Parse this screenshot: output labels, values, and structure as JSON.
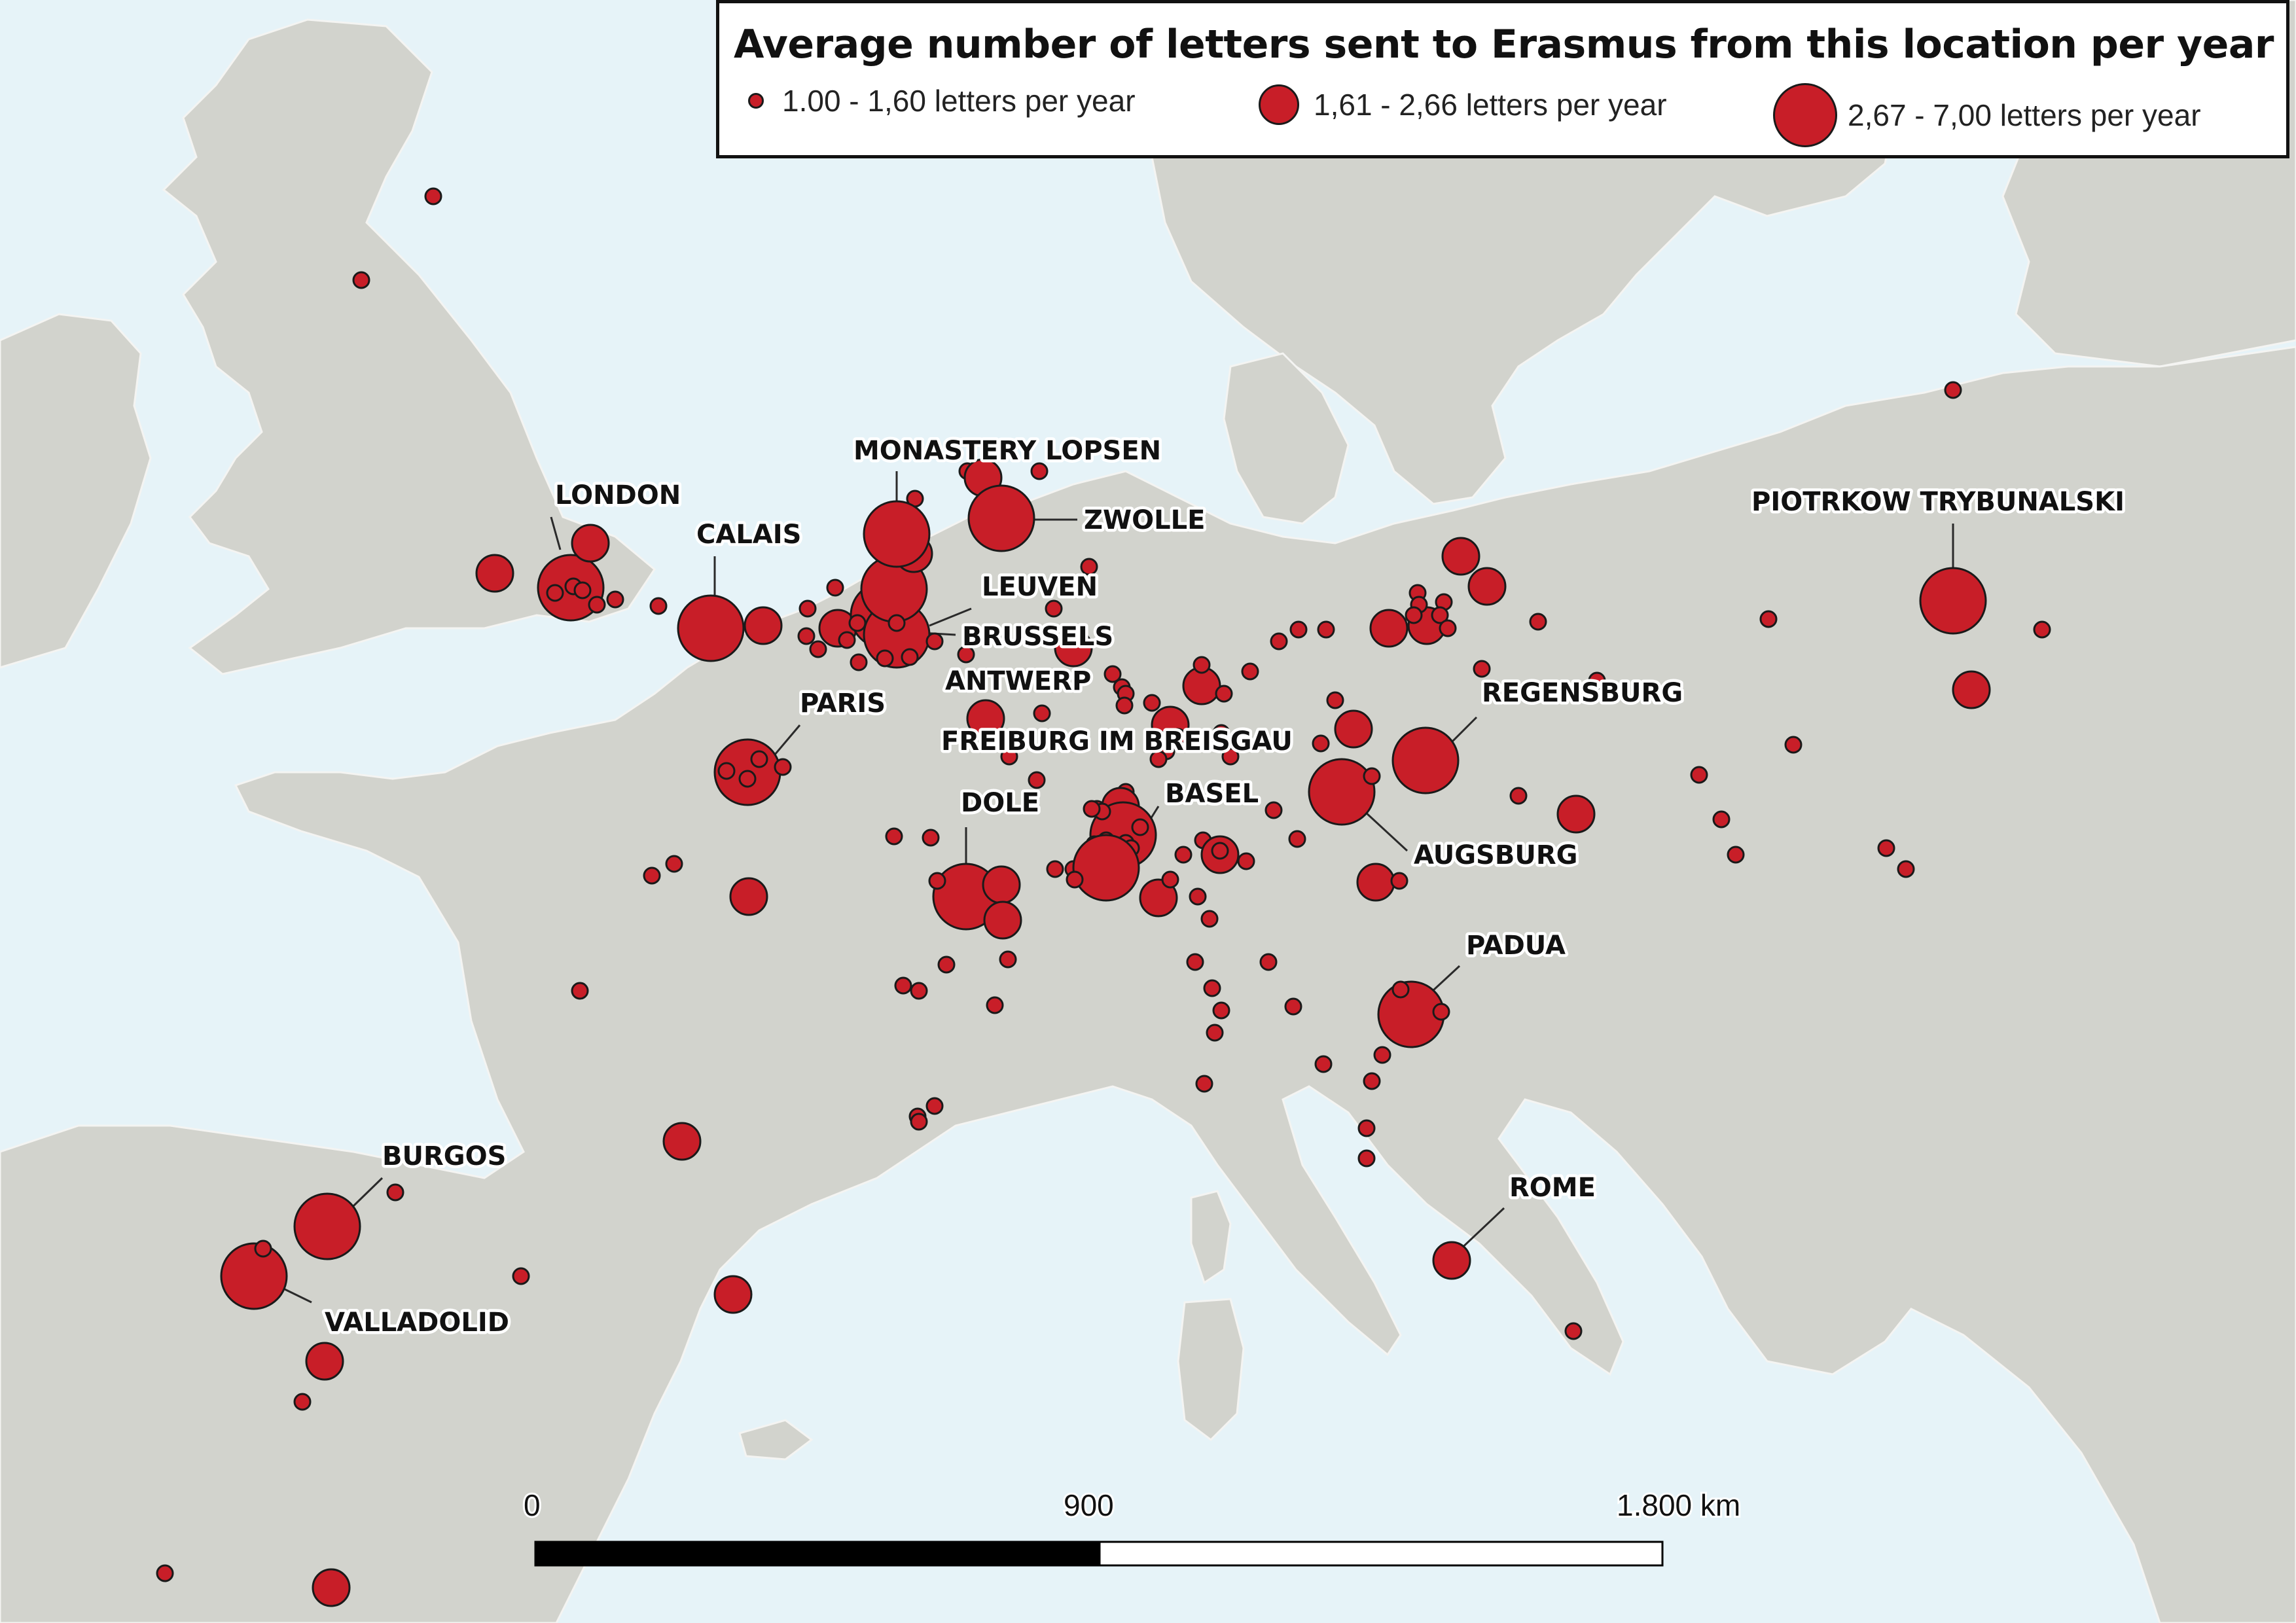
{
  "map": {
    "colors": {
      "land": "#d2d3cd",
      "water": "#e6f3f8",
      "dot": "#c81e28",
      "dot_stroke": "#1a1a1a"
    },
    "labels": [
      {
        "id": "london",
        "text": "LONDON"
      },
      {
        "id": "monastery-lopsen",
        "text": "MONASTERY LOPSEN"
      },
      {
        "id": "zwolle",
        "text": "ZWOLLE"
      },
      {
        "id": "calais",
        "text": "CALAIS"
      },
      {
        "id": "leuven",
        "text": "LEUVEN"
      },
      {
        "id": "brussels",
        "text": "BRUSSELS"
      },
      {
        "id": "antwerp",
        "text": "ANTWERP"
      },
      {
        "id": "paris",
        "text": "PARIS"
      },
      {
        "id": "freiburg",
        "text": "FREIBURG IM BREISGAU"
      },
      {
        "id": "basel",
        "text": "BASEL"
      },
      {
        "id": "dole",
        "text": "DOLE"
      },
      {
        "id": "regensburg",
        "text": "REGENSBURG"
      },
      {
        "id": "augsburg",
        "text": "AUGSBURG"
      },
      {
        "id": "padua",
        "text": "PADUA"
      },
      {
        "id": "rome",
        "text": "ROME"
      },
      {
        "id": "burgos",
        "text": "BURGOS"
      },
      {
        "id": "valladolid",
        "text": "VALLADOLID"
      },
      {
        "id": "piotrkow",
        "text": "PIOTRKOW TRYBUNALSKI"
      }
    ]
  },
  "legend": {
    "title": "Average number of letters sent to Erasmus from this location per year",
    "items": [
      {
        "label": "1.00 - 1,60 letters per year",
        "class": "small"
      },
      {
        "label": "1,61 - 2,66 letters per year",
        "class": "medium"
      },
      {
        "label": "2,67 - 7,00 letters per year",
        "class": "large"
      }
    ]
  },
  "scale_bar": {
    "ticks": [
      "0",
      "900",
      "1.800 km"
    ]
  }
}
